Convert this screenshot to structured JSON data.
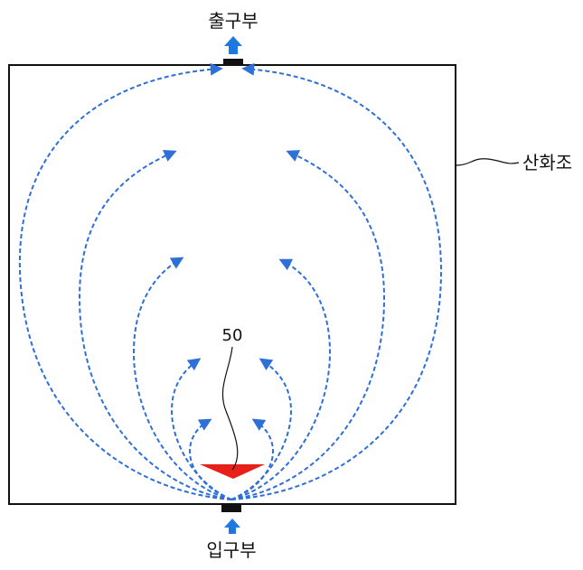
{
  "labels": {
    "outlet": "출구부",
    "inlet": "입구부",
    "tank": "산화조",
    "ref_number": "50"
  },
  "colors": {
    "flow_line": "#2f6fd8",
    "flow_arrow": "#2f6fd8",
    "port_arrow": "#1f78e0",
    "target": "#e8201a",
    "outline": "#111111"
  },
  "icons": {
    "outlet_arrow": "up-arrow-icon",
    "inlet_arrow": "up-arrow-icon"
  }
}
